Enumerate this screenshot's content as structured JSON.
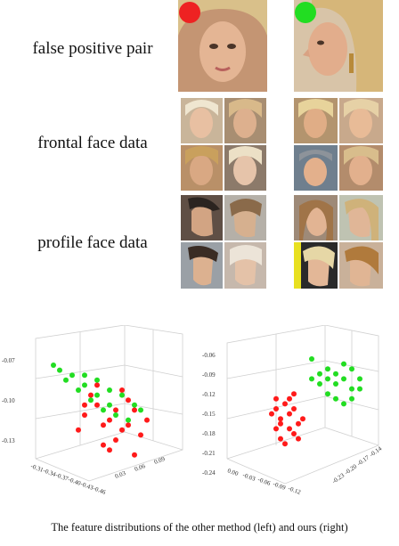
{
  "rows": [
    {
      "label": "false positive pair"
    },
    {
      "label": "frontal face data"
    },
    {
      "label": "profile face data"
    }
  ],
  "markers": {
    "left_color": "#ee2222",
    "right_color": "#22dd22"
  },
  "caption": "The feature distributions of the other method (left) and ours (right)",
  "chart_data": [
    {
      "type": "scatter",
      "series": [
        {
          "color": "#ff1a1a",
          "points": [
            [
              -0.4,
              -0.18
            ],
            [
              -0.42,
              -0.2
            ],
            [
              -0.38,
              -0.15
            ],
            [
              -0.36,
              -0.17
            ],
            [
              -0.44,
              -0.16
            ],
            [
              -0.41,
              -0.22
            ],
            [
              -0.39,
              -0.19
            ],
            [
              -0.43,
              -0.14
            ],
            [
              -0.37,
              -0.13
            ],
            [
              -0.45,
              -0.21
            ],
            [
              -0.4,
              -0.24
            ],
            [
              -0.38,
              -0.11
            ],
            [
              -0.42,
              -0.12
            ],
            [
              -0.35,
              -0.2
            ],
            [
              -0.46,
              -0.18
            ],
            [
              -0.41,
              -0.16
            ],
            [
              -0.39,
              -0.23
            ],
            [
              -0.44,
              -0.25
            ],
            [
              -0.36,
              -0.15
            ],
            [
              -0.43,
              -0.19
            ]
          ]
        },
        {
          "color": "#22dd22",
          "points": [
            [
              -0.31,
              -0.07
            ],
            [
              -0.34,
              -0.09
            ],
            [
              -0.36,
              -0.11
            ],
            [
              -0.38,
              -0.1
            ],
            [
              -0.4,
              -0.12
            ],
            [
              -0.42,
              -0.13
            ],
            [
              -0.37,
              -0.14
            ],
            [
              -0.44,
              -0.15
            ],
            [
              -0.33,
              -0.1
            ],
            [
              -0.39,
              -0.16
            ],
            [
              -0.41,
              -0.17
            ],
            [
              -0.35,
              -0.12
            ],
            [
              -0.43,
              -0.18
            ],
            [
              -0.45,
              -0.16
            ],
            [
              -0.38,
              -0.13
            ],
            [
              -0.32,
              -0.08
            ],
            [
              -0.4,
              -0.15
            ],
            [
              -0.36,
              -0.09
            ]
          ]
        }
      ],
      "y_ticks": [
        "-0.07",
        "-0.10",
        "-0.13"
      ],
      "x_ticks": [
        "-0.31",
        "-0.34",
        "-0.37",
        "-0.40",
        "-0.43",
        "-0.46"
      ],
      "z_ticks": [
        "0.03",
        "0.06",
        "0.09"
      ]
    },
    {
      "type": "scatter",
      "series": [
        {
          "color": "#ff1a1a",
          "points": [
            [
              -0.03,
              -0.18
            ],
            [
              -0.05,
              -0.2
            ],
            [
              -0.02,
              -0.16
            ],
            [
              -0.06,
              -0.21
            ],
            [
              -0.04,
              -0.15
            ],
            [
              -0.07,
              -0.19
            ],
            [
              -0.01,
              -0.17
            ],
            [
              -0.05,
              -0.14
            ],
            [
              -0.03,
              -0.22
            ],
            [
              -0.06,
              -0.16
            ],
            [
              -0.02,
              -0.2
            ],
            [
              -0.08,
              -0.18
            ],
            [
              -0.04,
              -0.23
            ],
            [
              -0.05,
              -0.17
            ],
            [
              -0.03,
              -0.19
            ],
            [
              -0.06,
              -0.13
            ],
            [
              -0.07,
              -0.22
            ],
            [
              -0.02,
              -0.14
            ]
          ]
        },
        {
          "color": "#22dd22",
          "points": [
            [
              0.08,
              -0.06
            ],
            [
              0.1,
              -0.08
            ],
            [
              0.12,
              -0.1
            ],
            [
              0.09,
              -0.11
            ],
            [
              0.11,
              -0.09
            ],
            [
              0.13,
              -0.12
            ],
            [
              0.1,
              -0.13
            ],
            [
              0.12,
              -0.07
            ],
            [
              0.14,
              -0.1
            ],
            [
              0.11,
              -0.14
            ],
            [
              0.09,
              -0.09
            ],
            [
              0.13,
              -0.08
            ],
            [
              0.12,
              -0.15
            ],
            [
              0.1,
              -0.1
            ],
            [
              0.14,
              -0.12
            ],
            [
              0.11,
              -0.11
            ],
            [
              0.08,
              -0.1
            ],
            [
              0.13,
              -0.14
            ]
          ]
        }
      ],
      "y_ticks": [
        "-0.06",
        "-0.09",
        "-0.12",
        "-0.15",
        "-0.18",
        "-0.21",
        "-0.24"
      ],
      "x_ticks": [
        "0.00",
        "-0.03",
        "-0.06",
        "-0.09",
        "-0.12"
      ],
      "z_ticks": [
        "-0.23",
        "-0.20",
        "-0.17",
        "-0.14"
      ]
    }
  ]
}
